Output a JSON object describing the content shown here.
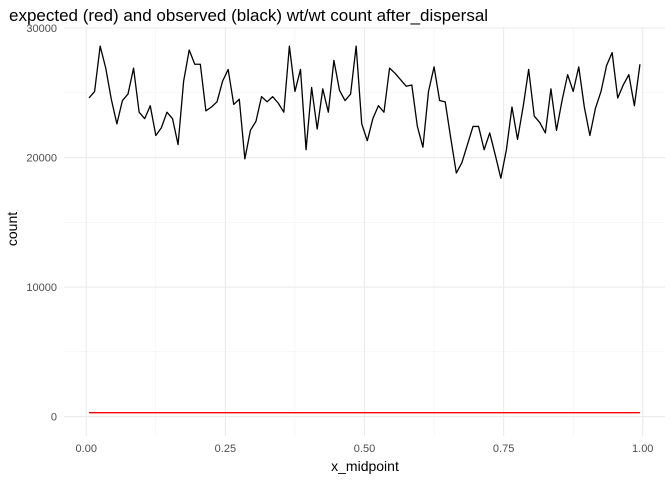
{
  "chart_data": {
    "type": "line",
    "title": "expected (red) and observed (black) wt/wt count after_dispersal",
    "xlabel": "x_midpoint",
    "ylabel": "count",
    "xlim": [
      -0.04,
      1.04
    ],
    "ylim": [
      -1500,
      30000
    ],
    "x_ticks": [
      0,
      0.25,
      0.5,
      0.75,
      1
    ],
    "x_tick_labels": [
      "0.00",
      "0.25",
      "0.50",
      "0.75",
      "1.00"
    ],
    "y_ticks": [
      0,
      10000,
      20000,
      30000
    ],
    "y_tick_labels": [
      "0",
      "10000",
      "20000",
      "30000"
    ],
    "grid": true,
    "legend": "none",
    "colors": {
      "observed": "#000000",
      "expected": "#ff0000"
    },
    "series": [
      {
        "color": "#000000",
        "x": [
          0.005,
          0.015,
          0.025,
          0.035,
          0.045,
          0.055,
          0.065,
          0.075,
          0.085,
          0.095,
          0.105,
          0.115,
          0.125,
          0.135,
          0.145,
          0.155,
          0.165,
          0.175,
          0.185,
          0.195,
          0.205,
          0.215,
          0.225,
          0.235,
          0.245,
          0.255,
          0.265,
          0.275,
          0.285,
          0.295,
          0.305,
          0.315,
          0.325,
          0.335,
          0.345,
          0.355,
          0.365,
          0.375,
          0.385,
          0.395,
          0.405,
          0.415,
          0.425,
          0.435,
          0.445,
          0.455,
          0.465,
          0.475,
          0.485,
          0.495,
          0.505,
          0.515,
          0.525,
          0.535,
          0.545,
          0.555,
          0.565,
          0.575,
          0.585,
          0.595,
          0.605,
          0.615,
          0.625,
          0.635,
          0.645,
          0.655,
          0.665,
          0.675,
          0.685,
          0.695,
          0.705,
          0.715,
          0.725,
          0.735,
          0.745,
          0.755,
          0.765,
          0.775,
          0.785,
          0.795,
          0.805,
          0.815,
          0.825,
          0.835,
          0.845,
          0.855,
          0.865,
          0.875,
          0.885,
          0.895,
          0.905,
          0.915,
          0.925,
          0.935,
          0.945,
          0.955,
          0.965,
          0.975,
          0.985,
          0.995
        ],
        "y": [
          24600,
          25100,
          28600,
          26900,
          24500,
          22600,
          24400,
          24900,
          26900,
          23500,
          23000,
          24000,
          21700,
          22300,
          23500,
          23000,
          21000,
          25900,
          28300,
          27200,
          27200,
          23600,
          23900,
          24300,
          25900,
          26800,
          24100,
          24500,
          19900,
          22100,
          22800,
          24700,
          24300,
          24700,
          24200,
          23500,
          28600,
          25100,
          26800,
          20600,
          25400,
          22200,
          25300,
          23500,
          27500,
          25200,
          24400,
          24900,
          28600,
          22600,
          21300,
          23000,
          24000,
          23500,
          26900,
          26500,
          26000,
          25500,
          25600,
          22400,
          20800,
          25100,
          27000,
          24400,
          24300,
          21500,
          18800,
          19600,
          21000,
          22400,
          22400,
          20600,
          21900,
          20200,
          18400,
          20600,
          23900,
          21400,
          23900,
          26800,
          23200,
          22700,
          21900,
          25300,
          22100,
          24400,
          26400,
          25100,
          27000,
          23900,
          21700,
          23800,
          25100,
          27100,
          28100,
          24600,
          25600,
          26400,
          24000,
          27200
        ]
      },
      {
        "color": "#ff0000",
        "x": [
          0.005,
          0.995
        ],
        "y": [
          300,
          300
        ]
      }
    ]
  }
}
